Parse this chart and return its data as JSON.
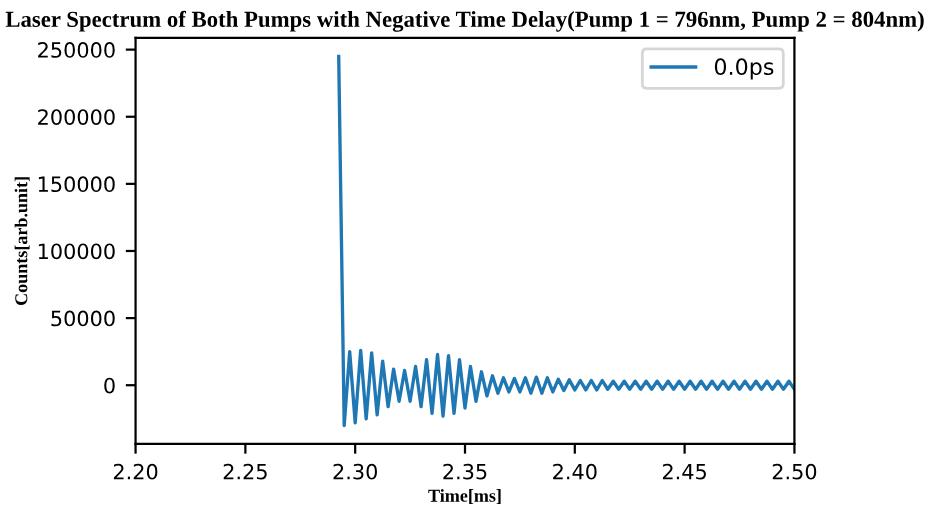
{
  "chart_data": {
    "type": "line",
    "title": "Laser Spectrum of Both Pumps with Negative Time Delay(Pump 1 = 796nm, Pump 2 = 804nm)",
    "xlabel": "Time[ms]",
    "ylabel": "Counts[arb.unit]",
    "series": [
      {
        "name": "0.0ps",
        "color": "#1f77b4",
        "x": [
          2.2925,
          2.295,
          2.2975,
          2.3,
          2.3025,
          2.305,
          2.3075,
          2.31,
          2.3125,
          2.315,
          2.3175,
          2.32,
          2.3225,
          2.325,
          2.3275,
          2.33,
          2.3325,
          2.335,
          2.3375,
          2.34,
          2.3425,
          2.345,
          2.3475,
          2.35,
          2.3525,
          2.355,
          2.3575,
          2.36,
          2.3625,
          2.365,
          2.3675,
          2.37,
          2.3725,
          2.375,
          2.3775,
          2.38,
          2.3825,
          2.385,
          2.3875,
          2.39,
          2.3925,
          2.395,
          2.3975,
          2.4,
          2.4025,
          2.405,
          2.4075,
          2.41,
          2.4125,
          2.415,
          2.4175,
          2.42,
          2.4225,
          2.425,
          2.4275,
          2.43,
          2.4325,
          2.435,
          2.4375,
          2.44,
          2.4425,
          2.445,
          2.4475,
          2.45,
          2.4525,
          2.455,
          2.4575,
          2.46,
          2.4625,
          2.465,
          2.4675,
          2.47,
          2.4725,
          2.475,
          2.4775,
          2.48,
          2.4825,
          2.485,
          2.4875,
          2.49,
          2.4925,
          2.495,
          2.4975,
          2.5
        ],
        "values": [
          245000,
          -30000,
          25000,
          -28000,
          26000,
          -25000,
          24000,
          -22000,
          18000,
          -16000,
          12000,
          -12000,
          11000,
          -12000,
          14000,
          -16000,
          19000,
          -21000,
          23000,
          -23000,
          22000,
          -21000,
          19000,
          -17000,
          14000,
          -12000,
          10000,
          -8000,
          7000,
          -6000,
          5500,
          -5000,
          5000,
          -5000,
          5500,
          -6000,
          6000,
          -6000,
          5500,
          -5000,
          4500,
          -4000,
          4000,
          -3500,
          3500,
          -3500,
          3500,
          -3500,
          3500,
          -3000,
          3000,
          -3000,
          3000,
          -3000,
          3000,
          -3000,
          3000,
          -3000,
          3000,
          -3000,
          3000,
          -3000,
          3000,
          -3000,
          3000,
          -3000,
          3000,
          -3000,
          3000,
          -3000,
          3000,
          -3000,
          3000,
          -3000,
          3000,
          -3000,
          3000,
          -3000,
          3000,
          -3000,
          3000,
          -3000,
          3000,
          -3000
        ]
      }
    ],
    "xlim": [
      2.2,
      2.5
    ],
    "ylim": [
      -43750,
      258750
    ],
    "xticks": [
      {
        "value": 2.2,
        "label": "2.20"
      },
      {
        "value": 2.25,
        "label": "2.25"
      },
      {
        "value": 2.3,
        "label": "2.30"
      },
      {
        "value": 2.35,
        "label": "2.35"
      },
      {
        "value": 2.4,
        "label": "2.40"
      },
      {
        "value": 2.45,
        "label": "2.45"
      },
      {
        "value": 2.5,
        "label": "2.50"
      }
    ],
    "yticks": [
      0,
      50000,
      100000,
      150000,
      200000,
      250000
    ],
    "legend": "top right",
    "grid": false
  }
}
